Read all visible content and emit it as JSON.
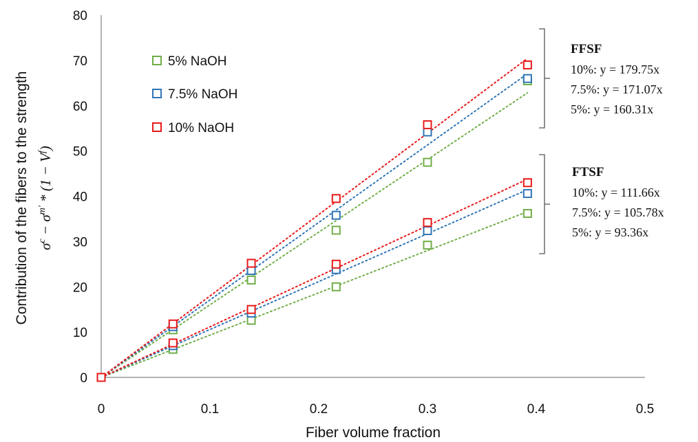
{
  "chart_data": {
    "type": "scatter",
    "xlabel": "Fiber volume fraction",
    "ylabel": "Contribution of the fibers to the strength",
    "ylabel_formula": {
      "sigma": "σ",
      "c": "c",
      "minus": " − ",
      "m": "m",
      "prime": "'",
      "times": " * (1 − ",
      "V": "V",
      "f": "f",
      "close": ")"
    },
    "xlim": [
      0,
      0.5
    ],
    "ylim": [
      0,
      80
    ],
    "xticks": [
      "0",
      "0.1",
      "0.2",
      "0.3",
      "0.4",
      "0.5"
    ],
    "xtick_values": [
      0,
      0.1,
      0.2,
      0.3,
      0.4,
      0.5
    ],
    "yticks": [
      "0",
      "10",
      "20",
      "30",
      "40",
      "50",
      "60",
      "70",
      "80"
    ],
    "ytick_values": [
      0,
      10,
      20,
      30,
      40,
      50,
      60,
      70,
      80
    ],
    "grid": false,
    "legend_position": "top-left",
    "legend": [
      {
        "label": "5% NaOH",
        "color": "#70ad47"
      },
      {
        "label": "7.5% NaOH",
        "color": "#2e75b6"
      },
      {
        "label": "10% NaOH",
        "color": "#e8191a"
      }
    ],
    "x": [
      0,
      0.066,
      0.138,
      0.216,
      0.3,
      0.392
    ],
    "series": [
      {
        "group": "FFSF",
        "color": "#70ad47",
        "slope": 160.31,
        "y": [
          0,
          10.5,
          21.5,
          32.5,
          47.5,
          65.5
        ]
      },
      {
        "group": "FFSF",
        "color": "#2e75b6",
        "slope": 171.07,
        "y": [
          0,
          11.2,
          23.6,
          35.8,
          54.2,
          66.0
        ]
      },
      {
        "group": "FFSF",
        "color": "#e8191a",
        "slope": 179.75,
        "y": [
          0,
          11.8,
          25.2,
          39.5,
          55.8,
          69.0
        ]
      },
      {
        "group": "FTSF",
        "color": "#70ad47",
        "slope": 93.36,
        "y": [
          0,
          6.2,
          12.6,
          20.0,
          29.2,
          36.2
        ]
      },
      {
        "group": "FTSF",
        "color": "#2e75b6",
        "slope": 105.78,
        "y": [
          0,
          7.0,
          14.2,
          23.8,
          32.4,
          40.6
        ]
      },
      {
        "group": "FTSF",
        "color": "#e8191a",
        "slope": 111.66,
        "y": [
          0,
          7.6,
          15.0,
          25.0,
          34.2,
          43.0
        ]
      }
    ],
    "annotations": [
      {
        "title": "FFSF",
        "lines": [
          "10%: y = 179.75x",
          "7.5%: y = 171.07x",
          "5%: y = 160.31x"
        ]
      },
      {
        "title": "FTSF",
        "lines": [
          "10%: y = 111.66x",
          "7.5%: y = 105.78x",
          "5%: y = 93.36x"
        ]
      }
    ]
  }
}
